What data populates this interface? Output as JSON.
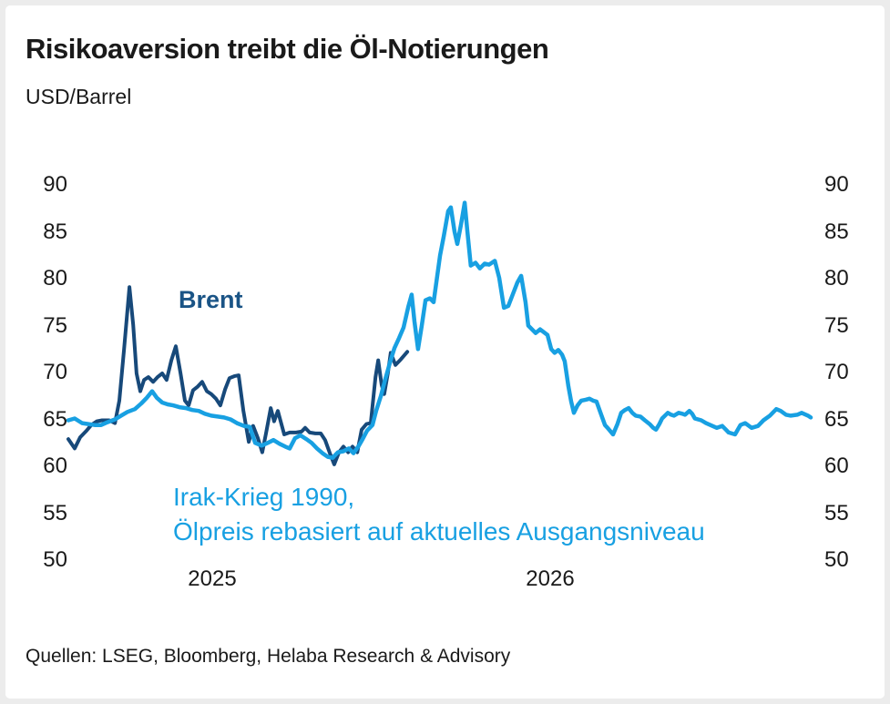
{
  "frame": {
    "background": "#ececec",
    "card_background": "#ffffff"
  },
  "header": {
    "title": "Risikoaversion treibt die Öl-Notierungen",
    "subtitle": "USD/Barrel"
  },
  "source_line": "Quellen: LSEG, Bloomberg, Helaba Research & Advisory",
  "chart_data": {
    "type": "line",
    "title": "Risikoaversion treibt die Öl-Notierungen",
    "unit": "USD/Barrel",
    "grid": false,
    "legend_position": "inline-annotations",
    "x_axis": {
      "range": [
        2024.574,
        2026.771
      ],
      "ticks": [
        {
          "label": "2025",
          "value": 2025
        },
        {
          "label": "2026",
          "value": 2026
        }
      ]
    },
    "y_axis": {
      "range": [
        50,
        90
      ],
      "ticks": [
        90,
        85,
        80,
        75,
        70,
        65,
        60,
        55,
        50
      ],
      "sides": "both"
    },
    "series": [
      {
        "id": "brent",
        "name": "Brent",
        "color": "#17497a",
        "width": 4,
        "label": {
          "text": "Brent"
        },
        "points": [
          [
            2024.574,
            62.9
          ],
          [
            2024.593,
            61.9
          ],
          [
            2024.609,
            63.1
          ],
          [
            2024.628,
            63.8
          ],
          [
            2024.642,
            64.4
          ],
          [
            2024.658,
            64.8
          ],
          [
            2024.674,
            64.9
          ],
          [
            2024.695,
            64.9
          ],
          [
            2024.712,
            64.6
          ],
          [
            2024.725,
            67.0
          ],
          [
            2024.739,
            72.5
          ],
          [
            2024.755,
            79.1
          ],
          [
            2024.766,
            75.1
          ],
          [
            2024.776,
            69.9
          ],
          [
            2024.787,
            68.0
          ],
          [
            2024.798,
            69.2
          ],
          [
            2024.811,
            69.5
          ],
          [
            2024.825,
            69.0
          ],
          [
            2024.838,
            69.5
          ],
          [
            2024.852,
            69.9
          ],
          [
            2024.865,
            69.2
          ],
          [
            2024.879,
            71.3
          ],
          [
            2024.892,
            72.8
          ],
          [
            2024.906,
            69.9
          ],
          [
            2024.919,
            67.0
          ],
          [
            2024.93,
            66.5
          ],
          [
            2024.943,
            68.1
          ],
          [
            2024.957,
            68.5
          ],
          [
            2024.97,
            69.0
          ],
          [
            2024.984,
            68.0
          ],
          [
            2024.997,
            67.7
          ],
          [
            2025.011,
            67.2
          ],
          [
            2025.024,
            66.5
          ],
          [
            2025.038,
            68.2
          ],
          [
            2025.051,
            69.4
          ],
          [
            2025.065,
            69.6
          ],
          [
            2025.078,
            69.7
          ],
          [
            2025.092,
            65.9
          ],
          [
            2025.108,
            62.6
          ],
          [
            2025.121,
            64.3
          ],
          [
            2025.135,
            63.0
          ],
          [
            2025.148,
            61.5
          ],
          [
            2025.159,
            63.5
          ],
          [
            2025.173,
            66.2
          ],
          [
            2025.183,
            64.8
          ],
          [
            2025.194,
            65.9
          ],
          [
            2025.213,
            63.4
          ],
          [
            2025.229,
            63.6
          ],
          [
            2025.248,
            63.6
          ],
          [
            2025.264,
            63.7
          ],
          [
            2025.275,
            64.1
          ],
          [
            2025.288,
            63.6
          ],
          [
            2025.305,
            63.5
          ],
          [
            2025.321,
            63.5
          ],
          [
            2025.334,
            62.8
          ],
          [
            2025.348,
            61.4
          ],
          [
            2025.361,
            60.2
          ],
          [
            2025.375,
            61.5
          ],
          [
            2025.388,
            62.1
          ],
          [
            2025.402,
            61.5
          ],
          [
            2025.415,
            62.1
          ],
          [
            2025.429,
            61.5
          ],
          [
            2025.442,
            63.9
          ],
          [
            2025.456,
            64.5
          ],
          [
            2025.469,
            64.6
          ],
          [
            2025.483,
            69.5
          ],
          [
            2025.491,
            71.3
          ],
          [
            2025.501,
            68.7
          ],
          [
            2025.509,
            67.7
          ],
          [
            2025.52,
            70.0
          ],
          [
            2025.528,
            72.1
          ],
          [
            2025.542,
            70.8
          ],
          [
            2025.558,
            71.4
          ],
          [
            2025.577,
            72.2
          ]
        ]
      },
      {
        "id": "irak-krieg-1990",
        "name": "Irak-Krieg 1990, Ölpreis rebasiert auf aktuelles Ausgangsniveau",
        "color": "#18a0e2",
        "width": 4.5,
        "annotation": {
          "line1": "Irak-Krieg 1990,",
          "line2": "Ölpreis rebasiert auf aktuelles Ausgangsniveau"
        },
        "points": [
          [
            2024.574,
            64.9
          ],
          [
            2024.593,
            65.1
          ],
          [
            2024.615,
            64.6
          ],
          [
            2024.633,
            64.5
          ],
          [
            2024.652,
            64.4
          ],
          [
            2024.671,
            64.4
          ],
          [
            2024.69,
            64.7
          ],
          [
            2024.712,
            65.0
          ],
          [
            2024.73,
            65.4
          ],
          [
            2024.749,
            65.8
          ],
          [
            2024.771,
            66.1
          ],
          [
            2024.79,
            66.7
          ],
          [
            2024.806,
            67.3
          ],
          [
            2024.822,
            68.0
          ],
          [
            2024.836,
            67.3
          ],
          [
            2024.852,
            66.8
          ],
          [
            2024.868,
            66.6
          ],
          [
            2024.884,
            66.5
          ],
          [
            2024.903,
            66.3
          ],
          [
            2024.922,
            66.2
          ],
          [
            2024.941,
            66.0
          ],
          [
            2024.96,
            65.9
          ],
          [
            2024.978,
            65.6
          ],
          [
            2024.997,
            65.4
          ],
          [
            2025.016,
            65.3
          ],
          [
            2025.035,
            65.2
          ],
          [
            2025.054,
            65.0
          ],
          [
            2025.073,
            64.6
          ],
          [
            2025.094,
            64.3
          ],
          [
            2025.111,
            64.2
          ],
          [
            2025.127,
            62.5
          ],
          [
            2025.146,
            62.2
          ],
          [
            2025.164,
            62.5
          ],
          [
            2025.181,
            62.8
          ],
          [
            2025.199,
            62.4
          ],
          [
            2025.216,
            62.1
          ],
          [
            2025.229,
            61.9
          ],
          [
            2025.245,
            63.0
          ],
          [
            2025.261,
            63.3
          ],
          [
            2025.278,
            62.9
          ],
          [
            2025.294,
            62.5
          ],
          [
            2025.31,
            61.9
          ],
          [
            2025.326,
            61.4
          ],
          [
            2025.342,
            61.0
          ],
          [
            2025.356,
            60.9
          ],
          [
            2025.372,
            61.5
          ],
          [
            2025.388,
            61.6
          ],
          [
            2025.404,
            61.9
          ],
          [
            2025.418,
            61.4
          ],
          [
            2025.434,
            62.2
          ],
          [
            2025.445,
            62.9
          ],
          [
            2025.458,
            63.8
          ],
          [
            2025.474,
            64.4
          ],
          [
            2025.485,
            65.9
          ],
          [
            2025.499,
            67.5
          ],
          [
            2025.512,
            69.3
          ],
          [
            2025.526,
            71.1
          ],
          [
            2025.539,
            72.6
          ],
          [
            2025.553,
            73.7
          ],
          [
            2025.566,
            74.8
          ],
          [
            2025.58,
            77.0
          ],
          [
            2025.59,
            78.3
          ],
          [
            2025.598,
            75.5
          ],
          [
            2025.609,
            72.5
          ],
          [
            2025.62,
            75.0
          ],
          [
            2025.631,
            77.7
          ],
          [
            2025.644,
            77.9
          ],
          [
            2025.655,
            77.5
          ],
          [
            2025.674,
            82.5
          ],
          [
            2025.685,
            84.5
          ],
          [
            2025.698,
            87.2
          ],
          [
            2025.706,
            87.6
          ],
          [
            2025.717,
            85.0
          ],
          [
            2025.725,
            83.7
          ],
          [
            2025.736,
            85.8
          ],
          [
            2025.747,
            88.1
          ],
          [
            2025.755,
            85.0
          ],
          [
            2025.765,
            81.4
          ],
          [
            2025.779,
            81.7
          ],
          [
            2025.792,
            81.1
          ],
          [
            2025.806,
            81.6
          ],
          [
            2025.819,
            81.5
          ],
          [
            2025.836,
            81.9
          ],
          [
            2025.849,
            80.1
          ],
          [
            2025.863,
            76.9
          ],
          [
            2025.876,
            77.1
          ],
          [
            2025.889,
            78.3
          ],
          [
            2025.903,
            79.6
          ],
          [
            2025.914,
            80.3
          ],
          [
            2025.927,
            77.5
          ],
          [
            2025.935,
            75.0
          ],
          [
            2025.946,
            74.6
          ],
          [
            2025.957,
            74.2
          ],
          [
            2025.97,
            74.6
          ],
          [
            2025.981,
            74.3
          ],
          [
            2025.992,
            74.0
          ],
          [
            2026.003,
            72.5
          ],
          [
            2026.013,
            72.1
          ],
          [
            2026.024,
            72.4
          ],
          [
            2026.035,
            71.9
          ],
          [
            2026.043,
            71.2
          ],
          [
            2026.054,
            68.5
          ],
          [
            2026.062,
            66.9
          ],
          [
            2026.07,
            65.7
          ],
          [
            2026.081,
            66.5
          ],
          [
            2026.092,
            67.0
          ],
          [
            2026.105,
            67.1
          ],
          [
            2026.116,
            67.2
          ],
          [
            2026.127,
            67.0
          ],
          [
            2026.137,
            66.9
          ],
          [
            2026.151,
            65.5
          ],
          [
            2026.162,
            64.4
          ],
          [
            2026.172,
            64.0
          ],
          [
            2026.186,
            63.4
          ],
          [
            2026.199,
            64.5
          ],
          [
            2026.21,
            65.7
          ],
          [
            2026.221,
            66.0
          ],
          [
            2026.232,
            66.2
          ],
          [
            2026.243,
            65.7
          ],
          [
            2026.253,
            65.4
          ],
          [
            2026.267,
            65.3
          ],
          [
            2026.28,
            64.9
          ],
          [
            2026.294,
            64.5
          ],
          [
            2026.305,
            64.1
          ],
          [
            2026.313,
            63.9
          ],
          [
            2026.323,
            64.5
          ],
          [
            2026.331,
            65.1
          ],
          [
            2026.348,
            65.7
          ],
          [
            2026.358,
            65.5
          ],
          [
            2026.366,
            65.4
          ],
          [
            2026.38,
            65.7
          ],
          [
            2026.391,
            65.6
          ],
          [
            2026.399,
            65.5
          ],
          [
            2026.412,
            65.9
          ],
          [
            2026.42,
            65.6
          ],
          [
            2026.428,
            65.1
          ],
          [
            2026.447,
            64.9
          ],
          [
            2026.461,
            64.6
          ],
          [
            2026.474,
            64.4
          ],
          [
            2026.493,
            64.1
          ],
          [
            2026.509,
            64.3
          ],
          [
            2026.52,
            63.9
          ],
          [
            2026.528,
            63.6
          ],
          [
            2026.547,
            63.4
          ],
          [
            2026.563,
            64.4
          ],
          [
            2026.577,
            64.6
          ],
          [
            2026.596,
            64.1
          ],
          [
            2026.615,
            64.3
          ],
          [
            2026.631,
            64.9
          ],
          [
            2026.65,
            65.4
          ],
          [
            2026.669,
            66.1
          ],
          [
            2026.682,
            65.9
          ],
          [
            2026.698,
            65.5
          ],
          [
            2026.712,
            65.4
          ],
          [
            2026.731,
            65.5
          ],
          [
            2026.744,
            65.7
          ],
          [
            2026.763,
            65.4
          ],
          [
            2026.771,
            65.2
          ]
        ]
      }
    ]
  }
}
